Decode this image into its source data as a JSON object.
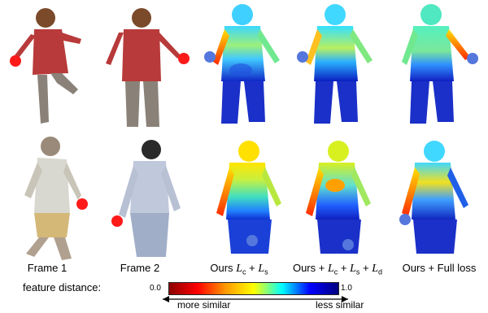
{
  "columns": [
    {
      "label": "Frame 1"
    },
    {
      "label": "Frame 2"
    },
    {
      "label_prefix": "Ours",
      "terms": [
        "L_c",
        "L_s"
      ]
    },
    {
      "label_prefix": "Ours +",
      "terms": [
        "L_c",
        "L_s",
        "L_d"
      ]
    },
    {
      "label": "Ours + Full loss"
    }
  ],
  "colorbar": {
    "title": "feature distance:",
    "min": "0.0",
    "max": "1.0",
    "low_text": "more similar",
    "high_text": "less similar",
    "stops": [
      "#8b0000",
      "#ff0000",
      "#ff9900",
      "#ffff00",
      "#00ffff",
      "#0000ff",
      "#000080"
    ]
  },
  "colors": {
    "marker_red": "#ff1a1a",
    "marker_blue": "#5577dd",
    "shirt_red": "#b83a3a",
    "pants_gray": "#8a8278"
  }
}
